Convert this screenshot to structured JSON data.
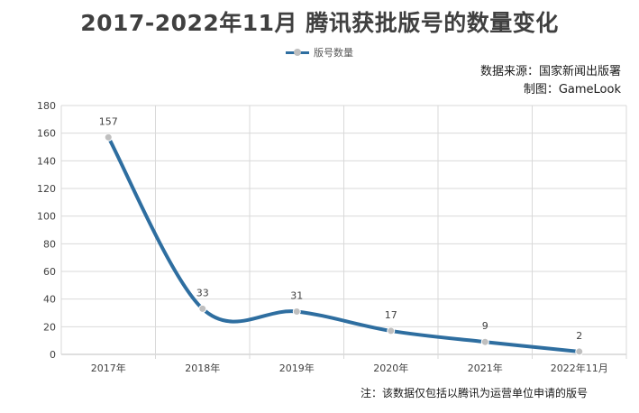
{
  "chart_data": {
    "type": "line",
    "title": "2017-2022年11月  腾讯获批版号的数量变化",
    "categories": [
      "2017年",
      "2018年",
      "2019年",
      "2020年",
      "2021年",
      "2022年11月"
    ],
    "series": [
      {
        "name": "版号数量",
        "values": [
          157,
          33,
          31,
          17,
          9,
          2
        ]
      }
    ],
    "ylim": [
      0,
      180
    ],
    "yticks": [
      0,
      20,
      40,
      60,
      80,
      100,
      120,
      140,
      160,
      180
    ],
    "grid": true,
    "legend_position": "top-center",
    "smooth": true
  },
  "source": {
    "data_source": "数据来源：国家新闻出版署",
    "made_by": "制图：GameLook"
  },
  "note": "注：该数据仅包括以腾讯为运营单位申请的版号",
  "colors": {
    "line": "#2e6ea0",
    "marker": "#bfbfbf",
    "grid": "#d9d9d9",
    "axis": "#bfbfbf"
  }
}
